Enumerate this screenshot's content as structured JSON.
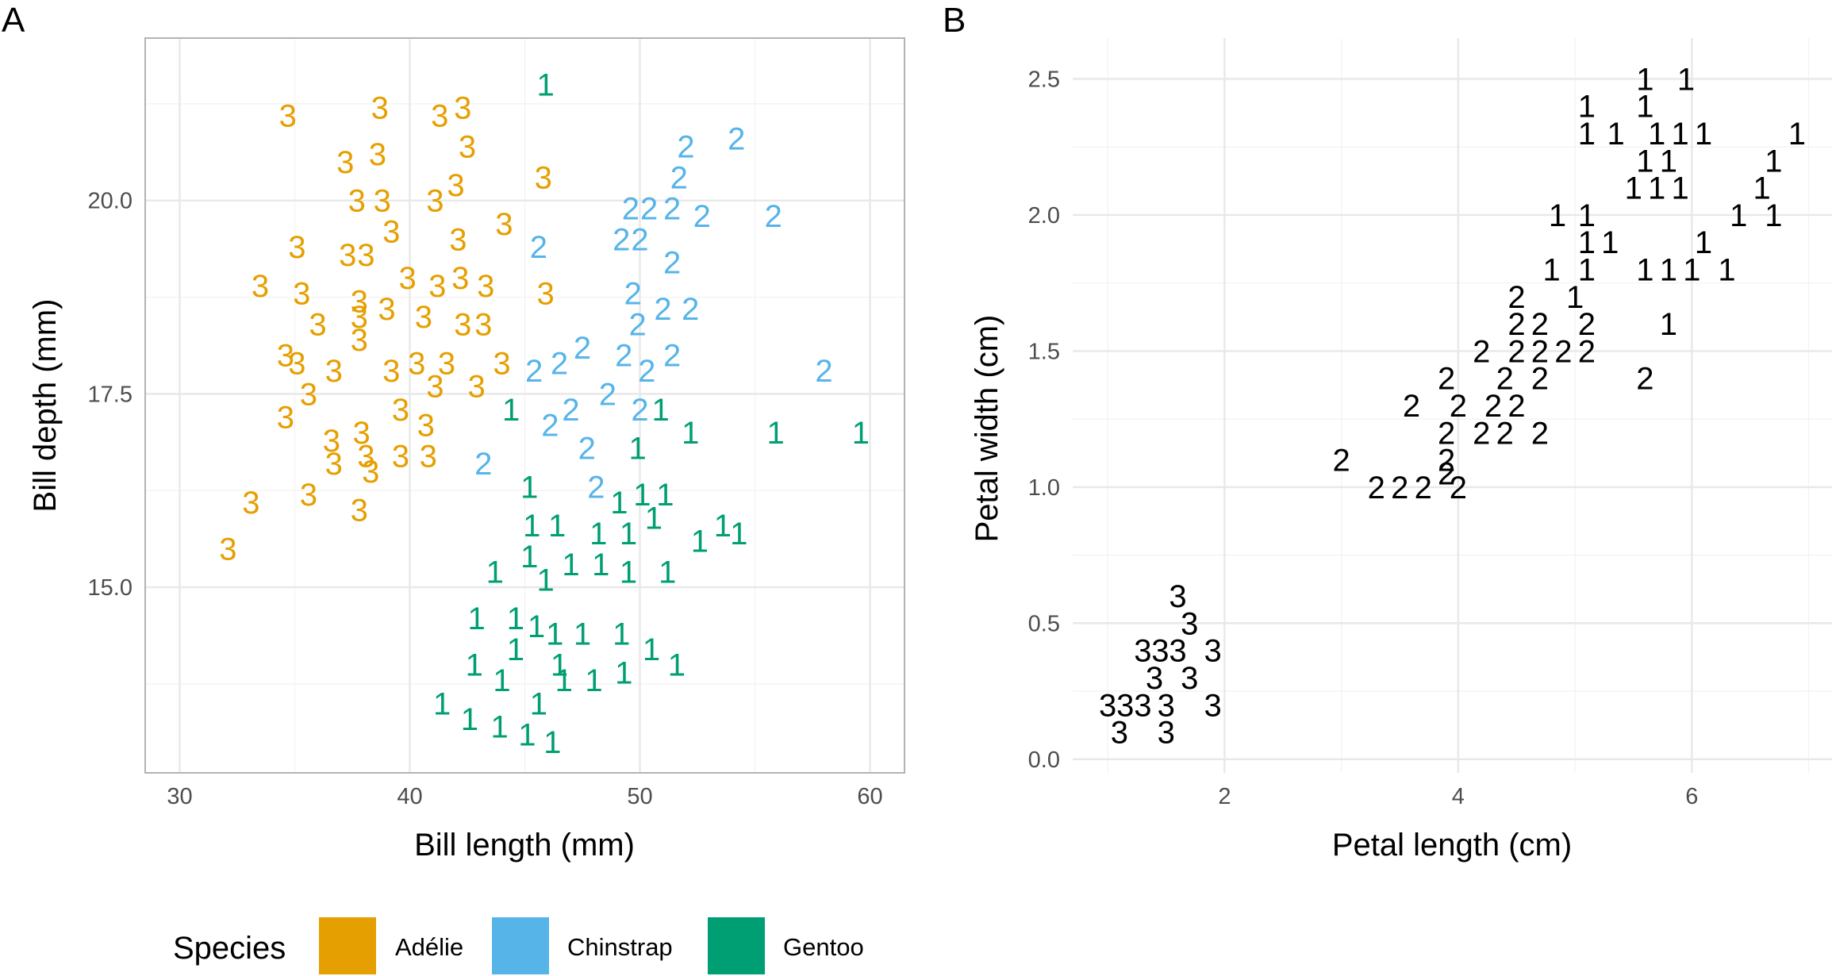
{
  "panels": {
    "a_tag": "A",
    "b_tag": "B"
  },
  "legend": {
    "title": "Species",
    "entries": [
      {
        "label": "Adélie",
        "color": "#E69F00"
      },
      {
        "label": "Chinstrap",
        "color": "#56B4E9"
      },
      {
        "label": "Gentoo",
        "color": "#009E73"
      }
    ]
  },
  "chart_data": [
    {
      "type": "scatter",
      "title": "",
      "xlabel": "Bill length (mm)",
      "ylabel": "Bill depth (mm)",
      "xlim": [
        28.5,
        61.5
      ],
      "ylim": [
        12.6,
        22.1
      ],
      "xticks": [
        30,
        40,
        50,
        60
      ],
      "xtick_labels": [
        "30",
        "40",
        "50",
        "60"
      ],
      "yticks": [
        15.0,
        17.5,
        20.0
      ],
      "ytick_labels": [
        "15.0",
        "17.5",
        "20.0"
      ],
      "grid": true,
      "marker": "cluster number glyph",
      "series": [
        {
          "name": "Adélie",
          "color": "#E69F00",
          "label": "3",
          "points": [
            [
              34.7,
              21.1
            ],
            [
              38.7,
              21.2
            ],
            [
              41.3,
              21.1
            ],
            [
              42.3,
              21.2
            ],
            [
              37.2,
              20.5
            ],
            [
              38.6,
              20.6
            ],
            [
              42.5,
              20.7
            ],
            [
              45.8,
              20.3
            ],
            [
              37.7,
              20.0
            ],
            [
              38.8,
              20.0
            ],
            [
              41.1,
              20.0
            ],
            [
              42.0,
              20.2
            ],
            [
              44.1,
              19.7
            ],
            [
              39.2,
              19.6
            ],
            [
              42.1,
              19.5
            ],
            [
              35.1,
              19.4
            ],
            [
              37.3,
              19.3
            ],
            [
              38.1,
              19.3
            ],
            [
              33.5,
              18.9
            ],
            [
              35.3,
              18.8
            ],
            [
              37.8,
              18.7
            ],
            [
              39.9,
              19.0
            ],
            [
              41.2,
              18.9
            ],
            [
              42.2,
              19.0
            ],
            [
              43.3,
              18.9
            ],
            [
              45.9,
              18.8
            ],
            [
              36.0,
              18.4
            ],
            [
              37.8,
              18.5
            ],
            [
              39.0,
              18.6
            ],
            [
              40.6,
              18.5
            ],
            [
              42.3,
              18.4
            ],
            [
              43.2,
              18.4
            ],
            [
              37.8,
              18.2
            ],
            [
              34.6,
              18.0
            ],
            [
              35.1,
              17.9
            ],
            [
              36.7,
              17.8
            ],
            [
              39.2,
              17.8
            ],
            [
              40.3,
              17.9
            ],
            [
              41.6,
              17.9
            ],
            [
              44.0,
              17.9
            ],
            [
              35.6,
              17.5
            ],
            [
              39.6,
              17.3
            ],
            [
              41.1,
              17.6
            ],
            [
              42.9,
              17.6
            ],
            [
              34.6,
              17.2
            ],
            [
              40.7,
              17.1
            ],
            [
              37.9,
              17.0
            ],
            [
              36.6,
              16.9
            ],
            [
              36.7,
              16.6
            ],
            [
              38.1,
              16.7
            ],
            [
              39.6,
              16.7
            ],
            [
              40.8,
              16.7
            ],
            [
              38.3,
              16.5
            ],
            [
              35.6,
              16.2
            ],
            [
              37.8,
              16.0
            ],
            [
              33.1,
              16.1
            ],
            [
              32.1,
              15.5
            ]
          ]
        },
        {
          "name": "Chinstrap",
          "color": "#56B4E9",
          "label": "2",
          "points": [
            [
              54.2,
              20.8
            ],
            [
              52.0,
              20.7
            ],
            [
              51.7,
              20.3
            ],
            [
              49.6,
              19.9
            ],
            [
              50.4,
              19.9
            ],
            [
              51.4,
              19.9
            ],
            [
              52.7,
              19.8
            ],
            [
              55.8,
              19.8
            ],
            [
              49.2,
              19.5
            ],
            [
              50.0,
              19.5
            ],
            [
              45.6,
              19.4
            ],
            [
              51.4,
              19.2
            ],
            [
              49.7,
              18.8
            ],
            [
              51.0,
              18.6
            ],
            [
              52.2,
              18.6
            ],
            [
              49.9,
              18.4
            ],
            [
              47.5,
              18.1
            ],
            [
              49.3,
              18.0
            ],
            [
              51.4,
              18.0
            ],
            [
              45.4,
              17.8
            ],
            [
              46.5,
              17.9
            ],
            [
              50.3,
              17.8
            ],
            [
              58.0,
              17.8
            ],
            [
              48.6,
              17.5
            ],
            [
              47.0,
              17.3
            ],
            [
              50.0,
              17.3
            ],
            [
              46.1,
              17.1
            ],
            [
              47.7,
              16.8
            ],
            [
              43.2,
              16.6
            ],
            [
              48.1,
              16.3
            ]
          ]
        },
        {
          "name": "Gentoo",
          "color": "#009E73",
          "label": "1",
          "points": [
            [
              45.9,
              21.5
            ],
            [
              50.9,
              17.3
            ],
            [
              44.4,
              17.3
            ],
            [
              52.2,
              17.0
            ],
            [
              55.9,
              17.0
            ],
            [
              59.6,
              17.0
            ],
            [
              49.9,
              16.8
            ],
            [
              45.2,
              16.3
            ],
            [
              50.1,
              16.2
            ],
            [
              51.1,
              16.2
            ],
            [
              49.1,
              16.1
            ],
            [
              50.6,
              15.9
            ],
            [
              45.3,
              15.8
            ],
            [
              46.4,
              15.8
            ],
            [
              48.2,
              15.7
            ],
            [
              49.5,
              15.7
            ],
            [
              52.6,
              15.6
            ],
            [
              53.6,
              15.8
            ],
            [
              54.3,
              15.7
            ],
            [
              45.2,
              15.4
            ],
            [
              47.0,
              15.3
            ],
            [
              48.3,
              15.3
            ],
            [
              43.7,
              15.2
            ],
            [
              45.9,
              15.1
            ],
            [
              49.5,
              15.2
            ],
            [
              51.2,
              15.2
            ],
            [
              42.9,
              14.6
            ],
            [
              44.6,
              14.6
            ],
            [
              45.5,
              14.5
            ],
            [
              46.3,
              14.4
            ],
            [
              47.5,
              14.4
            ],
            [
              49.2,
              14.4
            ],
            [
              44.6,
              14.2
            ],
            [
              50.5,
              14.2
            ],
            [
              42.8,
              14.0
            ],
            [
              46.5,
              14.0
            ],
            [
              51.6,
              14.0
            ],
            [
              48.0,
              13.8
            ],
            [
              49.3,
              13.9
            ],
            [
              44.0,
              13.8
            ],
            [
              46.7,
              13.8
            ],
            [
              41.4,
              13.5
            ],
            [
              45.6,
              13.5
            ],
            [
              42.6,
              13.3
            ],
            [
              43.9,
              13.2
            ],
            [
              45.1,
              13.1
            ],
            [
              46.2,
              13.0
            ]
          ]
        }
      ]
    },
    {
      "type": "scatter",
      "title": "",
      "xlabel": "Petal length (cm)",
      "ylabel": "Petal width (cm)",
      "xlim": [
        0.7,
        7.2
      ],
      "ylim": [
        -0.05,
        2.65
      ],
      "xticks": [
        2,
        4,
        6
      ],
      "xtick_labels": [
        "2",
        "4",
        "6"
      ],
      "yticks": [
        0.0,
        0.5,
        1.0,
        1.5,
        2.0,
        2.5
      ],
      "ytick_labels": [
        "0.0",
        "0.5",
        "1.0",
        "1.5",
        "2.0",
        "2.5"
      ],
      "grid": true,
      "marker": "cluster number glyph",
      "color": "#000000",
      "series": [
        {
          "label": "1",
          "points": [
            [
              5.6,
              2.5
            ],
            [
              5.95,
              2.5
            ],
            [
              5.1,
              2.4
            ],
            [
              5.6,
              2.4
            ],
            [
              5.1,
              2.3
            ],
            [
              5.35,
              2.3
            ],
            [
              5.7,
              2.3
            ],
            [
              5.9,
              2.3
            ],
            [
              6.1,
              2.3
            ],
            [
              6.9,
              2.3
            ],
            [
              5.6,
              2.2
            ],
            [
              5.8,
              2.2
            ],
            [
              6.7,
              2.2
            ],
            [
              5.5,
              2.1
            ],
            [
              5.7,
              2.1
            ],
            [
              5.9,
              2.1
            ],
            [
              6.6,
              2.1
            ],
            [
              4.85,
              2.0
            ],
            [
              5.1,
              2.0
            ],
            [
              6.4,
              2.0
            ],
            [
              6.7,
              2.0
            ],
            [
              5.1,
              1.9
            ],
            [
              5.3,
              1.9
            ],
            [
              6.1,
              1.9
            ],
            [
              4.8,
              1.8
            ],
            [
              5.1,
              1.8
            ],
            [
              5.6,
              1.8
            ],
            [
              5.8,
              1.8
            ],
            [
              6.0,
              1.8
            ],
            [
              6.3,
              1.8
            ],
            [
              5.0,
              1.7
            ],
            [
              5.8,
              1.6
            ]
          ]
        },
        {
          "label": "2",
          "points": [
            [
              4.5,
              1.7
            ],
            [
              4.5,
              1.6
            ],
            [
              4.7,
              1.6
            ],
            [
              5.1,
              1.6
            ],
            [
              4.2,
              1.5
            ],
            [
              4.5,
              1.5
            ],
            [
              4.7,
              1.5
            ],
            [
              4.9,
              1.5
            ],
            [
              5.1,
              1.5
            ],
            [
              3.9,
              1.4
            ],
            [
              4.4,
              1.4
            ],
            [
              4.7,
              1.4
            ],
            [
              5.6,
              1.4
            ],
            [
              3.6,
              1.3
            ],
            [
              4.0,
              1.3
            ],
            [
              4.3,
              1.3
            ],
            [
              4.5,
              1.3
            ],
            [
              3.9,
              1.2
            ],
            [
              4.2,
              1.2
            ],
            [
              4.4,
              1.2
            ],
            [
              4.7,
              1.2
            ],
            [
              3.9,
              1.1
            ],
            [
              3.0,
              1.1
            ],
            [
              3.9,
              1.05
            ],
            [
              3.3,
              1.0
            ],
            [
              3.5,
              1.0
            ],
            [
              3.7,
              1.0
            ],
            [
              4.0,
              1.0
            ]
          ]
        },
        {
          "label": "3",
          "points": [
            [
              1.6,
              0.6
            ],
            [
              1.7,
              0.5
            ],
            [
              1.3,
              0.4
            ],
            [
              1.45,
              0.4
            ],
            [
              1.6,
              0.4
            ],
            [
              1.9,
              0.4
            ],
            [
              1.4,
              0.3
            ],
            [
              1.7,
              0.3
            ],
            [
              1.0,
              0.2
            ],
            [
              1.15,
              0.2
            ],
            [
              1.3,
              0.2
            ],
            [
              1.5,
              0.2
            ],
            [
              1.9,
              0.2
            ],
            [
              1.1,
              0.1
            ],
            [
              1.5,
              0.1
            ]
          ]
        }
      ]
    }
  ]
}
